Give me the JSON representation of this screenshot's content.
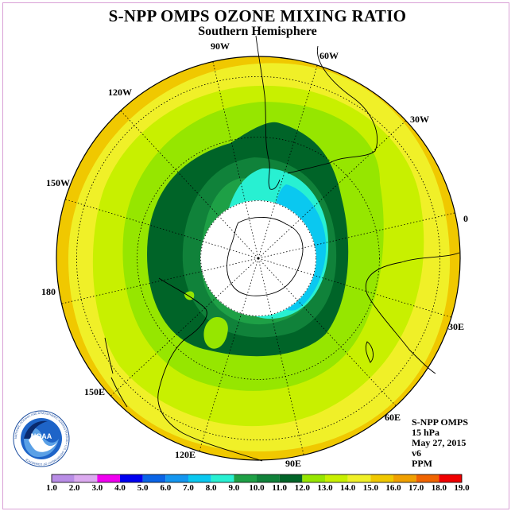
{
  "title": "S-NPP OMPS OZONE MIXING RATIO",
  "subtitle": "Southern Hemisphere",
  "longitude_labels": [
    "90W",
    "60W",
    "30W",
    "0",
    "30E",
    "60E",
    "90E",
    "120E",
    "150E",
    "180",
    "150W",
    "120W"
  ],
  "info": {
    "instrument": "S-NPP OMPS",
    "level": "15 hPa",
    "date": "May 27, 2015",
    "version": "v6",
    "units": "PPM"
  },
  "logo": {
    "name": "NOAA",
    "ring_text": "NATIONAL OCEANIC AND ATMOSPHERIC ADMINISTRATION • U.S. DEPARTMENT OF COMMERCE"
  },
  "colorbar": {
    "ticks": [
      "1.0",
      "2.0",
      "3.0",
      "4.0",
      "5.0",
      "6.0",
      "7.0",
      "8.0",
      "9.0",
      "10.0",
      "11.0",
      "12.0",
      "13.0",
      "14.0",
      "15.0",
      "16.0",
      "17.0",
      "18.0",
      "19.0"
    ],
    "colors": [
      "#b98de6",
      "#dcaaf0",
      "#f000f0",
      "#0000f0",
      "#0a64e6",
      "#1496f0",
      "#0ac8f0",
      "#28f0d2",
      "#1ea046",
      "#10823a",
      "#006428",
      "#96e600",
      "#c8f000",
      "#f0f028",
      "#f0c800",
      "#f0a000",
      "#f06400",
      "#f00000",
      "#8c5a3c"
    ]
  },
  "map_colors": {
    "yellow": "#f0f028",
    "orange": "#f0c800",
    "yellow_green": "#c8f000",
    "light_green": "#96e600",
    "green": "#1ea046",
    "dark_green": "#10823a",
    "darkest_green": "#006428",
    "cyan": "#28f0d2",
    "light_blue": "#0ac8f0"
  }
}
